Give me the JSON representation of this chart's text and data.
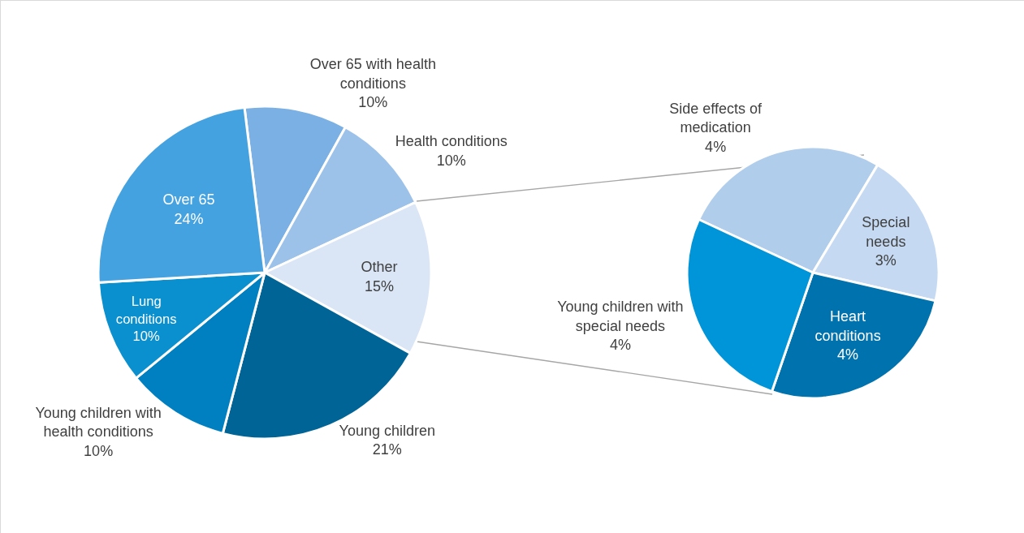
{
  "chart_data": [
    {
      "type": "pie",
      "categories": [
        "Over 65 with health conditions",
        "Health conditions",
        "Other",
        "Young children",
        "Young children with health conditions",
        "Lung conditions",
        "Over 65"
      ],
      "values": [
        10,
        10,
        15,
        21,
        10,
        10,
        24
      ],
      "colors": [
        "#7ab0e3",
        "#9cc2ea",
        "#dae6f6",
        "#006496",
        "#0080c0",
        "#0a8fcf",
        "#45a2e0"
      ],
      "value_labels": [
        "10%",
        "10%",
        "15%",
        "21%",
        "10%",
        "10%",
        "24%"
      ]
    },
    {
      "type": "pie",
      "categories": [
        "Side effects of medication",
        "Special needs",
        "Heart conditions",
        "Young children with special needs"
      ],
      "values": [
        4,
        3,
        4,
        4
      ],
      "colors": [
        "#b0cdec",
        "#c5daf2",
        "#0072ad",
        "#0094d8"
      ],
      "value_labels": [
        "4%",
        "3%",
        "4%",
        "4%"
      ]
    }
  ]
}
